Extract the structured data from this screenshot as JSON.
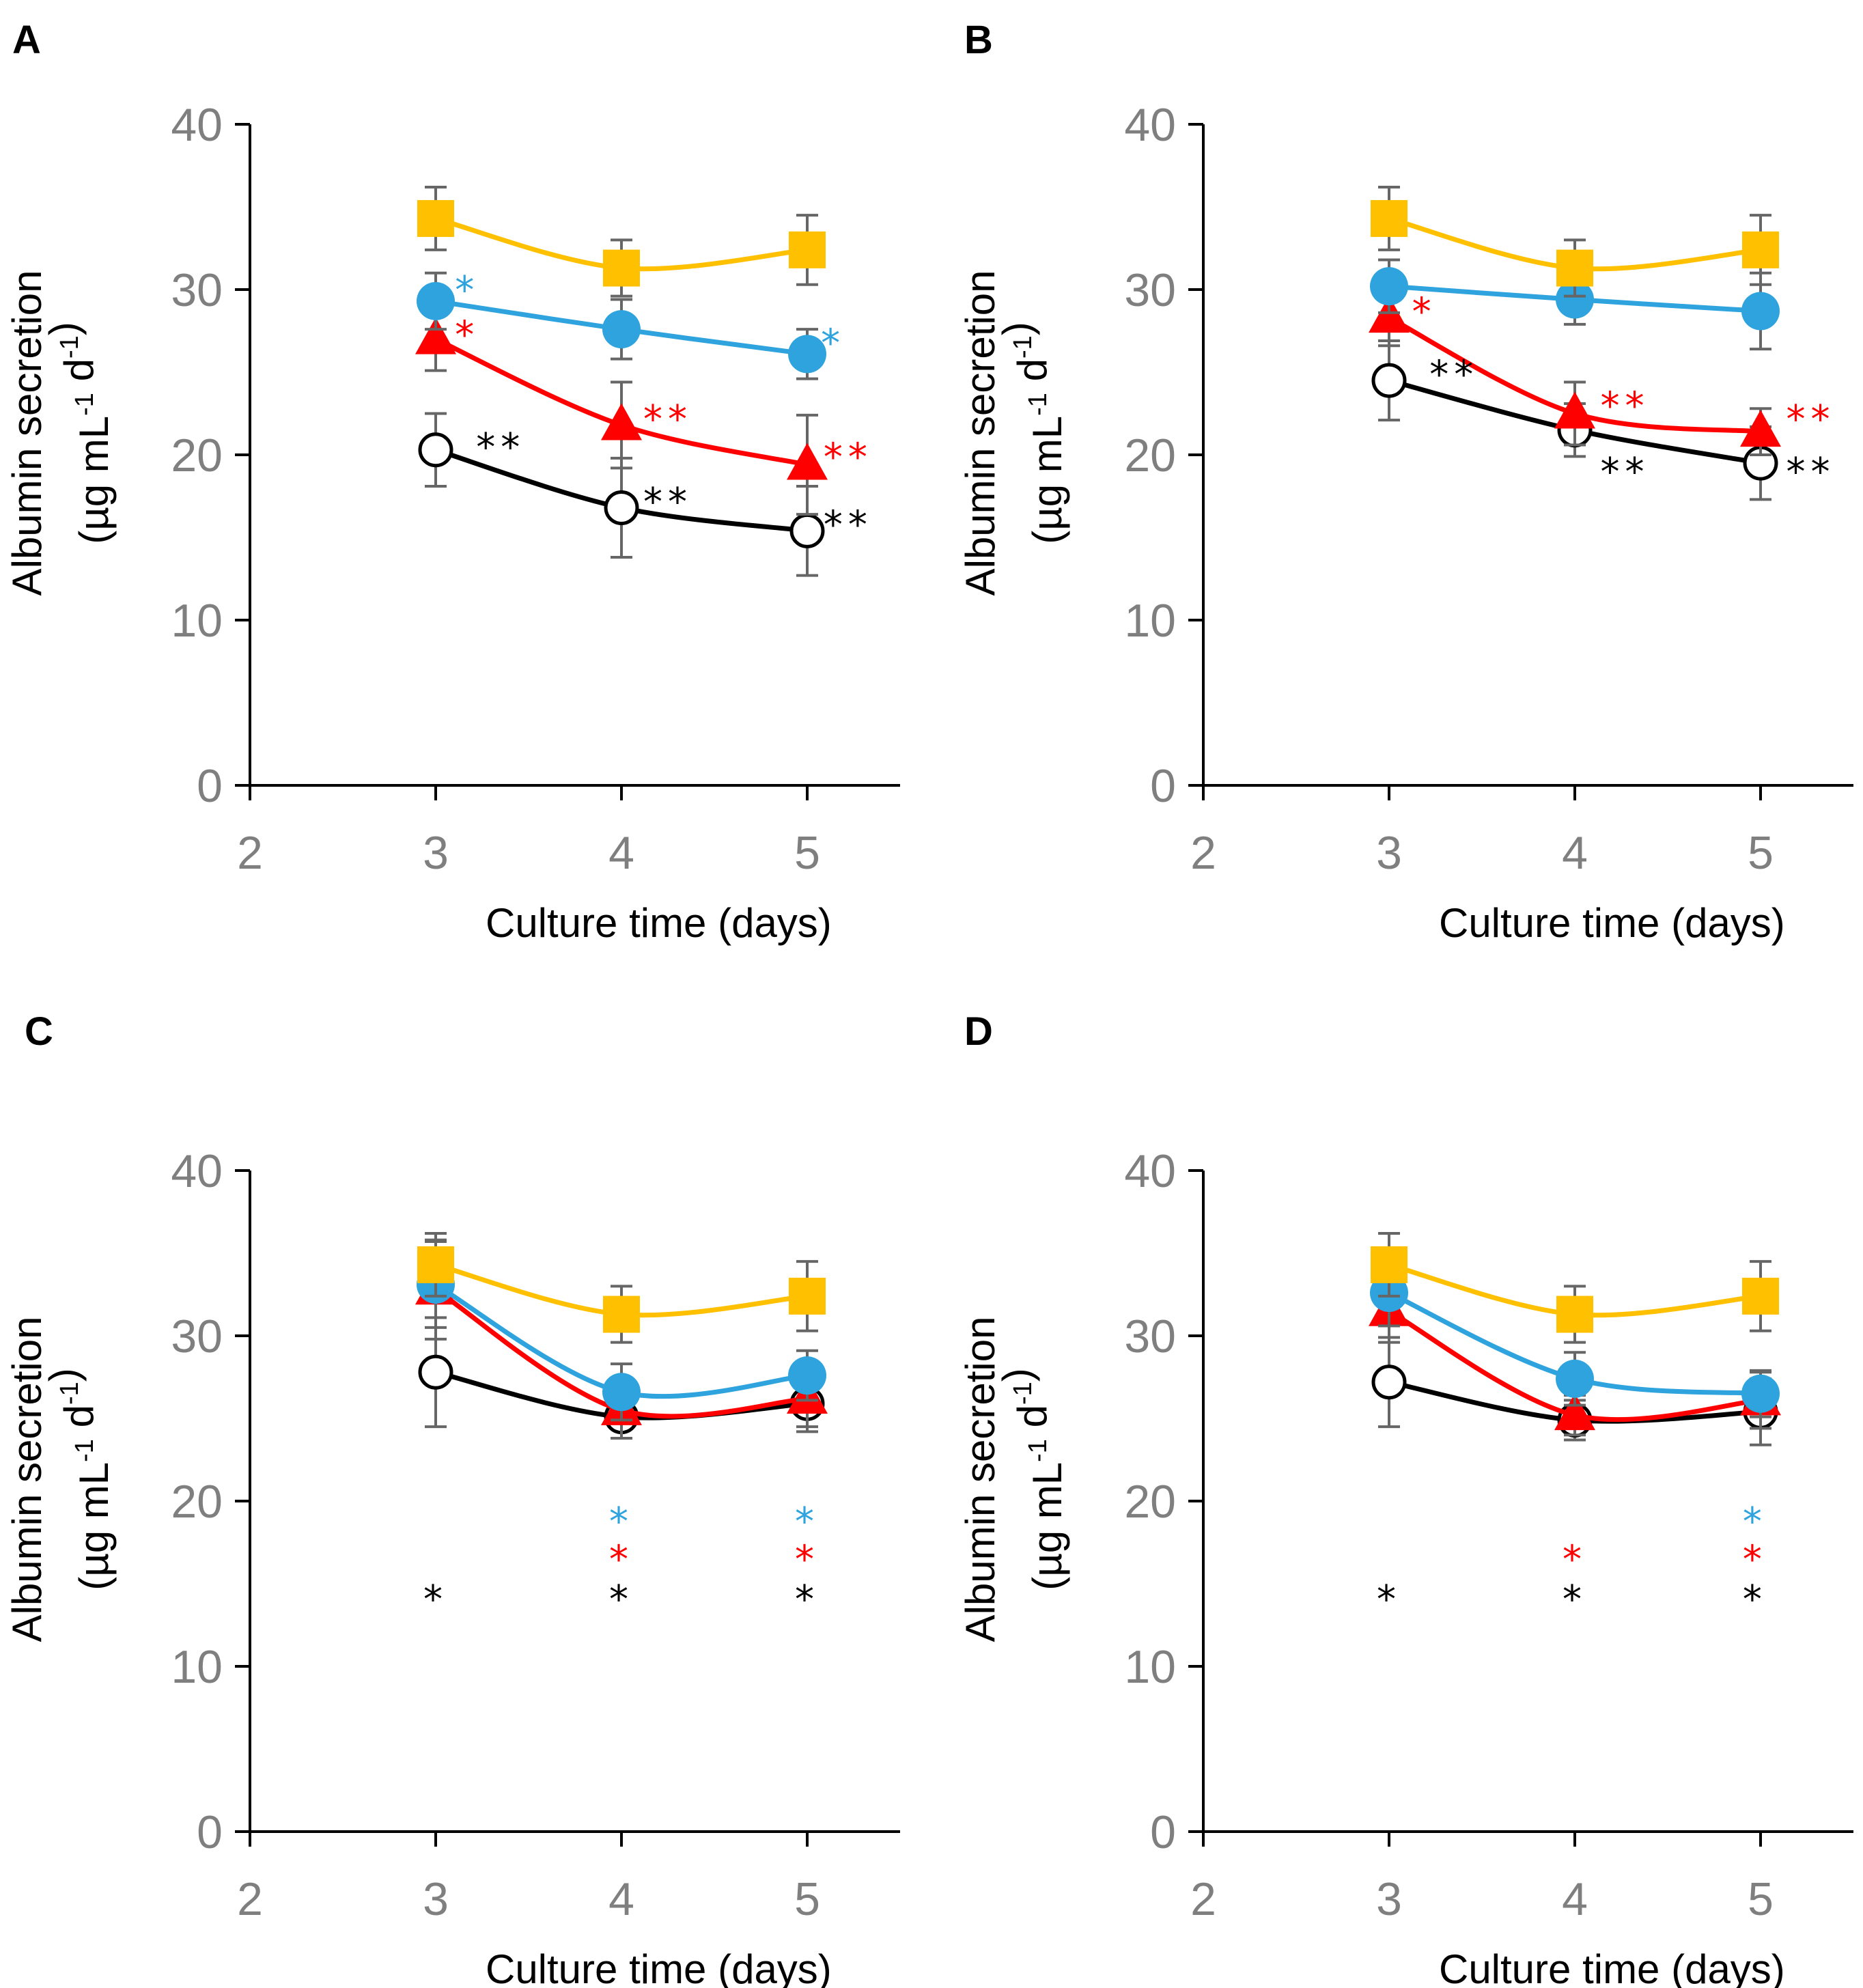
{
  "colors": {
    "yellow": "#ffc000",
    "blue": "#2ea3dd",
    "red": "#ff0000",
    "black": "#000000",
    "error": "#666666",
    "axis": "#000000",
    "tick_text": "#7f7f7f"
  },
  "chart_data": [
    {
      "type": "line",
      "panel": "A",
      "xlabel": "Culture time (days)",
      "ylabel_line1": "Albumin secretion",
      "ylabel_unit": "(µg mL",
      "ylabel_sup1": "-1",
      "ylabel_mid": " d",
      "ylabel_sup2": "-1",
      "ylabel_end": ")",
      "xlim": [
        2,
        5.5
      ],
      "ylim": [
        0,
        40
      ],
      "xticks": [
        "2",
        "3",
        "4",
        "5"
      ],
      "yticks": [
        "0",
        "10",
        "20",
        "30",
        "40"
      ],
      "x": [
        3,
        4,
        5
      ],
      "series": [
        {
          "name": "yellow-squares",
          "color": "yellow",
          "marker": "square",
          "values": [
            34.3,
            31.3,
            32.4
          ],
          "err": [
            1.9,
            1.7,
            2.1
          ]
        },
        {
          "name": "blue-circles",
          "color": "blue",
          "marker": "circle",
          "values": [
            29.3,
            27.6,
            26.1
          ],
          "err": [
            1.7,
            1.8,
            1.5
          ]
        },
        {
          "name": "red-triangles",
          "color": "red",
          "marker": "triangle",
          "values": [
            27.0,
            21.8,
            19.4
          ],
          "err": [
            1.9,
            2.6,
            3.0
          ]
        },
        {
          "name": "black-open-circles",
          "color": "black",
          "marker": "open-circle",
          "values": [
            20.3,
            16.8,
            15.4
          ],
          "err": [
            2.2,
            3.0,
            2.7
          ]
        }
      ],
      "annotations": [
        {
          "text": "*",
          "color": "blue",
          "x": 3.17,
          "y": 30.0
        },
        {
          "text": "*",
          "color": "red",
          "x": 3.17,
          "y": 27.3
        },
        {
          "text": "**",
          "color": "black",
          "x": 3.35,
          "y": 20.5
        },
        {
          "text": "**",
          "color": "red",
          "x": 4.25,
          "y": 22.2
        },
        {
          "text": "**",
          "color": "black",
          "x": 4.25,
          "y": 17.2
        },
        {
          "text": "*",
          "color": "blue",
          "x": 5.14,
          "y": 26.8
        },
        {
          "text": "**",
          "color": "red",
          "x": 5.22,
          "y": 19.9
        },
        {
          "text": "**",
          "color": "black",
          "x": 5.22,
          "y": 15.8
        }
      ]
    },
    {
      "type": "line",
      "panel": "B",
      "xlabel": "Culture time (days)",
      "ylabel_line1": "Albumin secretion",
      "ylabel_unit": "(µg mL",
      "ylabel_sup1": "-1",
      "ylabel_mid": " d",
      "ylabel_sup2": "-1",
      "ylabel_end": ")",
      "xlim": [
        2,
        5.5
      ],
      "ylim": [
        0,
        40
      ],
      "xticks": [
        "2",
        "3",
        "4",
        "5"
      ],
      "yticks": [
        "0",
        "10",
        "20",
        "30",
        "40"
      ],
      "x": [
        3,
        4,
        5
      ],
      "series": [
        {
          "name": "yellow-squares",
          "color": "yellow",
          "marker": "square",
          "values": [
            34.3,
            31.3,
            32.4
          ],
          "err": [
            1.9,
            1.7,
            2.1
          ]
        },
        {
          "name": "blue-circles",
          "color": "blue",
          "marker": "circle",
          "values": [
            30.2,
            29.4,
            28.7
          ],
          "err": [
            1.6,
            1.5,
            2.3
          ]
        },
        {
          "name": "red-triangles",
          "color": "red",
          "marker": "triangle",
          "values": [
            28.3,
            22.5,
            21.4
          ],
          "err": [
            1.7,
            1.9,
            1.4
          ]
        },
        {
          "name": "black-open-circles",
          "color": "black",
          "marker": "open-circle",
          "values": [
            24.5,
            21.5,
            19.5
          ],
          "err": [
            2.4,
            1.6,
            2.2
          ]
        }
      ],
      "annotations": [
        {
          "text": "*",
          "color": "red",
          "x": 3.19,
          "y": 28.7
        },
        {
          "text": "**",
          "color": "black",
          "x": 3.35,
          "y": 24.9
        },
        {
          "text": "**",
          "color": "red",
          "x": 4.27,
          "y": 23.0
        },
        {
          "text": "**",
          "color": "black",
          "x": 4.27,
          "y": 19.0
        },
        {
          "text": "**",
          "color": "red",
          "x": 5.27,
          "y": 22.2
        },
        {
          "text": "**",
          "color": "black",
          "x": 5.27,
          "y": 19.0
        }
      ]
    },
    {
      "type": "line",
      "panel": "C",
      "xlabel": "Culture time (days)",
      "ylabel_line1": "Albumin secretion",
      "ylabel_unit": "(µg mL",
      "ylabel_sup1": "-1",
      "ylabel_mid": " d",
      "ylabel_sup2": "-1",
      "ylabel_end": ")",
      "xlim": [
        2,
        5.5
      ],
      "ylim": [
        0,
        40
      ],
      "xticks": [
        "2",
        "3",
        "4",
        "5"
      ],
      "yticks": [
        "0",
        "10",
        "20",
        "30",
        "40"
      ],
      "x": [
        3,
        4,
        5
      ],
      "series": [
        {
          "name": "yellow-squares",
          "color": "yellow",
          "marker": "square",
          "values": [
            34.3,
            31.3,
            32.4
          ],
          "err": [
            1.9,
            1.7,
            2.1
          ]
        },
        {
          "name": "blue-circles",
          "color": "blue",
          "marker": "circle",
          "values": [
            33.1,
            26.6,
            27.6
          ],
          "err": [
            2.6,
            1.7,
            1.5
          ]
        },
        {
          "name": "red-triangles",
          "color": "red",
          "marker": "triangle",
          "values": [
            32.8,
            25.5,
            26.2
          ],
          "err": [
            3.0,
            1.7,
            1.7
          ]
        },
        {
          "name": "black-open-circles",
          "color": "black",
          "marker": "open-circle",
          "values": [
            27.8,
            25.1,
            25.9
          ],
          "err": [
            3.3,
            1.3,
            1.7
          ]
        }
      ],
      "annotations": [
        {
          "text": "*",
          "color": "blue",
          "x": 4.0,
          "y": 18.8
        },
        {
          "text": "*",
          "color": "red",
          "x": 4.0,
          "y": 16.5
        },
        {
          "text": "*",
          "color": "black",
          "x": 4.0,
          "y": 14.1
        },
        {
          "text": "*",
          "color": "blue",
          "x": 5.0,
          "y": 18.8
        },
        {
          "text": "*",
          "color": "red",
          "x": 5.0,
          "y": 16.5
        },
        {
          "text": "*",
          "color": "black",
          "x": 5.0,
          "y": 14.1
        },
        {
          "text": "*",
          "color": "black",
          "x": 3.0,
          "y": 14.1
        }
      ]
    },
    {
      "type": "line",
      "panel": "D",
      "xlabel": "Culture time (days)",
      "ylabel_line1": "Albumin secretion",
      "ylabel_unit": "(µg mL",
      "ylabel_sup1": "-1",
      "ylabel_mid": " d",
      "ylabel_sup2": "-1",
      "ylabel_end": ")",
      "xlim": [
        2,
        5.5
      ],
      "ylim": [
        0,
        40
      ],
      "xticks": [
        "2",
        "3",
        "4",
        "5"
      ],
      "yticks": [
        "0",
        "10",
        "20",
        "30",
        "40"
      ],
      "x": [
        3,
        4,
        5
      ],
      "series": [
        {
          "name": "yellow-squares",
          "color": "yellow",
          "marker": "square",
          "values": [
            34.3,
            31.3,
            32.4
          ],
          "err": [
            1.9,
            1.7,
            2.1
          ]
        },
        {
          "name": "blue-circles",
          "color": "blue",
          "marker": "circle",
          "values": [
            32.6,
            27.4,
            26.5
          ],
          "err": [
            2.0,
            1.6,
            1.4
          ]
        },
        {
          "name": "red-triangles",
          "color": "red",
          "marker": "triangle",
          "values": [
            31.5,
            25.2,
            26.1
          ],
          "err": [
            1.9,
            1.2,
            1.7
          ]
        },
        {
          "name": "black-open-circles",
          "color": "black",
          "marker": "open-circle",
          "values": [
            27.2,
            24.9,
            25.4
          ],
          "err": [
            2.7,
            1.2,
            2.0
          ]
        }
      ],
      "annotations": [
        {
          "text": "*",
          "color": "red",
          "x": 4.0,
          "y": 16.5
        },
        {
          "text": "*",
          "color": "black",
          "x": 4.0,
          "y": 14.1
        },
        {
          "text": "*",
          "color": "blue",
          "x": 4.97,
          "y": 18.8
        },
        {
          "text": "*",
          "color": "red",
          "x": 4.97,
          "y": 16.5
        },
        {
          "text": "*",
          "color": "black",
          "x": 4.97,
          "y": 14.1
        },
        {
          "text": "*",
          "color": "black",
          "x": 3.0,
          "y": 14.1
        }
      ]
    }
  ]
}
